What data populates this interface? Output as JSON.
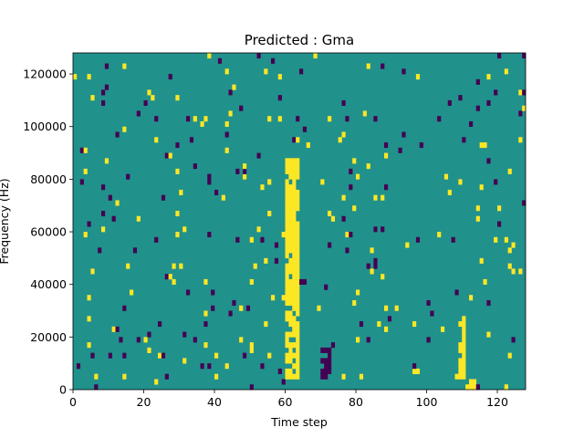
{
  "chart_data": {
    "type": "heatmap",
    "title": "Predicted : Gma",
    "xlabel": "Time step",
    "ylabel": "Frequency (Hz)",
    "xlim": [
      0,
      128
    ],
    "ylim": [
      0,
      128000
    ],
    "xticks": [
      0,
      20,
      40,
      60,
      80,
      100,
      120
    ],
    "yticks": [
      0,
      20000,
      40000,
      60000,
      80000,
      100000,
      120000
    ],
    "xtick_labels": [
      "0",
      "20",
      "40",
      "60",
      "80",
      "100",
      "120"
    ],
    "ytick_labels": [
      "0",
      "20000",
      "40000",
      "60000",
      "80000",
      "100000",
      "120000"
    ],
    "grid": false,
    "colormap": "viridis",
    "value_levels": [
      -1,
      0,
      1
    ],
    "colors": {
      "low": "#440154",
      "mid": "#21918c",
      "high": "#fde725"
    },
    "background_value": 0,
    "dense_regions": [
      {
        "value": 1,
        "x": [
          60,
          64
        ],
        "y": [
          4000,
          88000
        ]
      },
      {
        "value": 1,
        "x": [
          61,
          63
        ],
        "y": [
          60000,
          76000
        ]
      },
      {
        "value": -1,
        "x": [
          70,
          73
        ],
        "y": [
          4000,
          16000
        ]
      },
      {
        "value": 1,
        "x": [
          109,
          111
        ],
        "y": [
          4000,
          28000
        ]
      },
      {
        "value": 1,
        "x": [
          112,
          114
        ],
        "y": [
          0,
          4000
        ]
      }
    ],
    "sparse_fraction": 0.035
  }
}
